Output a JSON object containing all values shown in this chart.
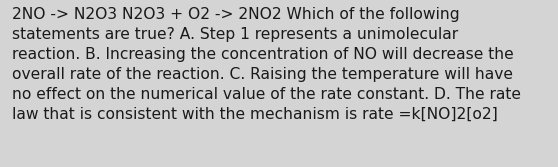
{
  "lines": [
    "2NO -> N2O3 N2O3 + O2 -> 2NO2 Which of the following",
    "statements are true? A. Step 1 represents a unimolecular",
    "reaction. B. Increasing the concentration of NO will decrease the",
    "overall rate of the reaction. C. Raising the temperature will have",
    "no effect on the numerical value of the rate constant. D. The rate",
    "law that is consistent with the mechanism is rate =k[NO]2[o2]"
  ],
  "background_color": "#d4d4d4",
  "text_color": "#1a1a1a",
  "font_size": 11.2,
  "fig_width": 5.58,
  "fig_height": 1.67,
  "dpi": 100
}
